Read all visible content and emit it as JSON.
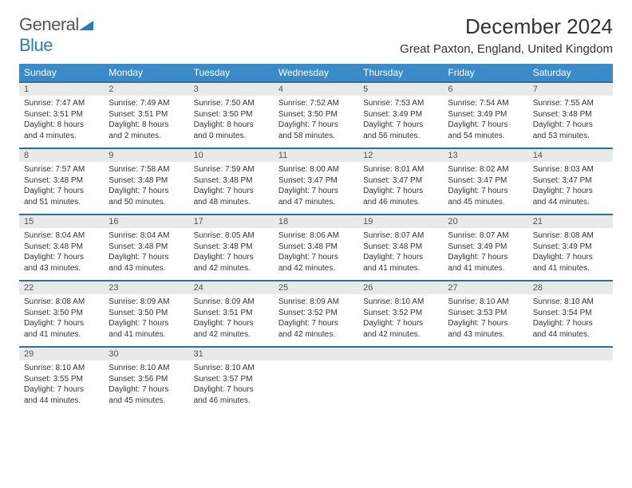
{
  "brand": {
    "word1": "General",
    "word2": "Blue"
  },
  "title": "December 2024",
  "location": "Great Paxton, England, United Kingdom",
  "colors": {
    "header_bg": "#3b8bc9",
    "row_border": "#2b6fa8",
    "daynum_bg": "#e9e9e9",
    "brand_blue": "#2b7bbd"
  },
  "weekdays": [
    "Sunday",
    "Monday",
    "Tuesday",
    "Wednesday",
    "Thursday",
    "Friday",
    "Saturday"
  ],
  "days": [
    {
      "n": "1",
      "sunrise": "Sunrise: 7:47 AM",
      "sunset": "Sunset: 3:51 PM",
      "day1": "Daylight: 8 hours",
      "day2": "and 4 minutes."
    },
    {
      "n": "2",
      "sunrise": "Sunrise: 7:49 AM",
      "sunset": "Sunset: 3:51 PM",
      "day1": "Daylight: 8 hours",
      "day2": "and 2 minutes."
    },
    {
      "n": "3",
      "sunrise": "Sunrise: 7:50 AM",
      "sunset": "Sunset: 3:50 PM",
      "day1": "Daylight: 8 hours",
      "day2": "and 0 minutes."
    },
    {
      "n": "4",
      "sunrise": "Sunrise: 7:52 AM",
      "sunset": "Sunset: 3:50 PM",
      "day1": "Daylight: 7 hours",
      "day2": "and 58 minutes."
    },
    {
      "n": "5",
      "sunrise": "Sunrise: 7:53 AM",
      "sunset": "Sunset: 3:49 PM",
      "day1": "Daylight: 7 hours",
      "day2": "and 56 minutes."
    },
    {
      "n": "6",
      "sunrise": "Sunrise: 7:54 AM",
      "sunset": "Sunset: 3:49 PM",
      "day1": "Daylight: 7 hours",
      "day2": "and 54 minutes."
    },
    {
      "n": "7",
      "sunrise": "Sunrise: 7:55 AM",
      "sunset": "Sunset: 3:48 PM",
      "day1": "Daylight: 7 hours",
      "day2": "and 53 minutes."
    },
    {
      "n": "8",
      "sunrise": "Sunrise: 7:57 AM",
      "sunset": "Sunset: 3:48 PM",
      "day1": "Daylight: 7 hours",
      "day2": "and 51 minutes."
    },
    {
      "n": "9",
      "sunrise": "Sunrise: 7:58 AM",
      "sunset": "Sunset: 3:48 PM",
      "day1": "Daylight: 7 hours",
      "day2": "and 50 minutes."
    },
    {
      "n": "10",
      "sunrise": "Sunrise: 7:59 AM",
      "sunset": "Sunset: 3:48 PM",
      "day1": "Daylight: 7 hours",
      "day2": "and 48 minutes."
    },
    {
      "n": "11",
      "sunrise": "Sunrise: 8:00 AM",
      "sunset": "Sunset: 3:47 PM",
      "day1": "Daylight: 7 hours",
      "day2": "and 47 minutes."
    },
    {
      "n": "12",
      "sunrise": "Sunrise: 8:01 AM",
      "sunset": "Sunset: 3:47 PM",
      "day1": "Daylight: 7 hours",
      "day2": "and 46 minutes."
    },
    {
      "n": "13",
      "sunrise": "Sunrise: 8:02 AM",
      "sunset": "Sunset: 3:47 PM",
      "day1": "Daylight: 7 hours",
      "day2": "and 45 minutes."
    },
    {
      "n": "14",
      "sunrise": "Sunrise: 8:03 AM",
      "sunset": "Sunset: 3:47 PM",
      "day1": "Daylight: 7 hours",
      "day2": "and 44 minutes."
    },
    {
      "n": "15",
      "sunrise": "Sunrise: 8:04 AM",
      "sunset": "Sunset: 3:48 PM",
      "day1": "Daylight: 7 hours",
      "day2": "and 43 minutes."
    },
    {
      "n": "16",
      "sunrise": "Sunrise: 8:04 AM",
      "sunset": "Sunset: 3:48 PM",
      "day1": "Daylight: 7 hours",
      "day2": "and 43 minutes."
    },
    {
      "n": "17",
      "sunrise": "Sunrise: 8:05 AM",
      "sunset": "Sunset: 3:48 PM",
      "day1": "Daylight: 7 hours",
      "day2": "and 42 minutes."
    },
    {
      "n": "18",
      "sunrise": "Sunrise: 8:06 AM",
      "sunset": "Sunset: 3:48 PM",
      "day1": "Daylight: 7 hours",
      "day2": "and 42 minutes."
    },
    {
      "n": "19",
      "sunrise": "Sunrise: 8:07 AM",
      "sunset": "Sunset: 3:48 PM",
      "day1": "Daylight: 7 hours",
      "day2": "and 41 minutes."
    },
    {
      "n": "20",
      "sunrise": "Sunrise: 8:07 AM",
      "sunset": "Sunset: 3:49 PM",
      "day1": "Daylight: 7 hours",
      "day2": "and 41 minutes."
    },
    {
      "n": "21",
      "sunrise": "Sunrise: 8:08 AM",
      "sunset": "Sunset: 3:49 PM",
      "day1": "Daylight: 7 hours",
      "day2": "and 41 minutes."
    },
    {
      "n": "22",
      "sunrise": "Sunrise: 8:08 AM",
      "sunset": "Sunset: 3:50 PM",
      "day1": "Daylight: 7 hours",
      "day2": "and 41 minutes."
    },
    {
      "n": "23",
      "sunrise": "Sunrise: 8:09 AM",
      "sunset": "Sunset: 3:50 PM",
      "day1": "Daylight: 7 hours",
      "day2": "and 41 minutes."
    },
    {
      "n": "24",
      "sunrise": "Sunrise: 8:09 AM",
      "sunset": "Sunset: 3:51 PM",
      "day1": "Daylight: 7 hours",
      "day2": "and 42 minutes."
    },
    {
      "n": "25",
      "sunrise": "Sunrise: 8:09 AM",
      "sunset": "Sunset: 3:52 PM",
      "day1": "Daylight: 7 hours",
      "day2": "and 42 minutes."
    },
    {
      "n": "26",
      "sunrise": "Sunrise: 8:10 AM",
      "sunset": "Sunset: 3:52 PM",
      "day1": "Daylight: 7 hours",
      "day2": "and 42 minutes."
    },
    {
      "n": "27",
      "sunrise": "Sunrise: 8:10 AM",
      "sunset": "Sunset: 3:53 PM",
      "day1": "Daylight: 7 hours",
      "day2": "and 43 minutes."
    },
    {
      "n": "28",
      "sunrise": "Sunrise: 8:10 AM",
      "sunset": "Sunset: 3:54 PM",
      "day1": "Daylight: 7 hours",
      "day2": "and 44 minutes."
    },
    {
      "n": "29",
      "sunrise": "Sunrise: 8:10 AM",
      "sunset": "Sunset: 3:55 PM",
      "day1": "Daylight: 7 hours",
      "day2": "and 44 minutes."
    },
    {
      "n": "30",
      "sunrise": "Sunrise: 8:10 AM",
      "sunset": "Sunset: 3:56 PM",
      "day1": "Daylight: 7 hours",
      "day2": "and 45 minutes."
    },
    {
      "n": "31",
      "sunrise": "Sunrise: 8:10 AM",
      "sunset": "Sunset: 3:57 PM",
      "day1": "Daylight: 7 hours",
      "day2": "and 46 minutes."
    }
  ]
}
